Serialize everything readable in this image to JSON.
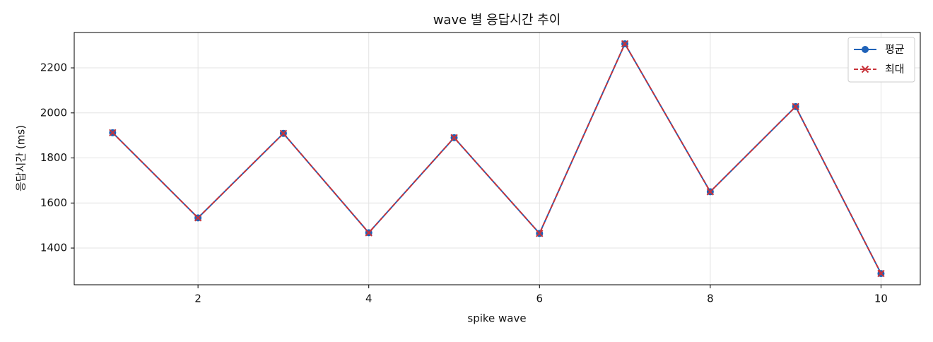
{
  "chart_data": {
    "type": "line",
    "title": "wave 별 응답시간 추이",
    "xlabel": "spike wave",
    "ylabel": "응답시간 (ms)",
    "x": [
      1,
      2,
      3,
      4,
      5,
      6,
      7,
      8,
      9,
      10
    ],
    "series": [
      {
        "name": "평균",
        "color": "#1f62b8",
        "linestyle": "solid",
        "marker": "o",
        "values": [
          1912,
          1534,
          1909,
          1468,
          1890,
          1465,
          2307,
          1650,
          2028,
          1287
        ]
      },
      {
        "name": "최대",
        "color": "#c8333a",
        "linestyle": "dashed",
        "marker": "x",
        "values": [
          1912,
          1534,
          1909,
          1468,
          1890,
          1465,
          2307,
          1650,
          2028,
          1287
        ]
      }
    ],
    "xlim": [
      0.55,
      10.46
    ],
    "xticks": [
      2,
      4,
      6,
      8,
      10
    ],
    "ylim": [
      1237,
      2357
    ],
    "yticks": [
      1400,
      1600,
      1800,
      2000,
      2200
    ],
    "grid": true,
    "legend": "upper right"
  }
}
